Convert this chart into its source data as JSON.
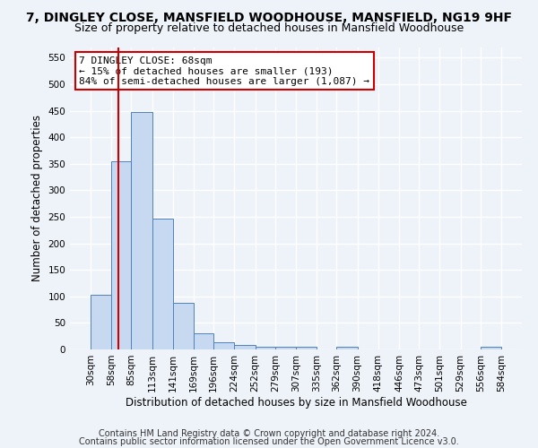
{
  "title": "7, DINGLEY CLOSE, MANSFIELD WOODHOUSE, MANSFIELD, NG19 9HF",
  "subtitle": "Size of property relative to detached houses in Mansfield Woodhouse",
  "xlabel": "Distribution of detached houses by size in Mansfield Woodhouse",
  "ylabel": "Number of detached properties",
  "footer_line1": "Contains HM Land Registry data © Crown copyright and database right 2024.",
  "footer_line2": "Contains public sector information licensed under the Open Government Licence v3.0.",
  "annotation_title": "7 DINGLEY CLOSE: 68sqm",
  "annotation_line1": "← 15% of detached houses are smaller (193)",
  "annotation_line2": "84% of semi-detached houses are larger (1,087) →",
  "bar_color": "#c6d9f0",
  "bar_edge_color": "#4f81bd",
  "vline_color": "#cc0000",
  "vline_x": 68,
  "bins": [
    30,
    58,
    85,
    113,
    141,
    169,
    196,
    224,
    252,
    279,
    307,
    335,
    362,
    390,
    418,
    446,
    473,
    501,
    529,
    556,
    584
  ],
  "values": [
    103,
    354,
    448,
    246,
    88,
    30,
    13,
    9,
    5,
    5,
    5,
    0,
    5,
    0,
    0,
    0,
    0,
    0,
    0,
    5
  ],
  "ylim": [
    0,
    570
  ],
  "yticks": [
    0,
    50,
    100,
    150,
    200,
    250,
    300,
    350,
    400,
    450,
    500,
    550
  ],
  "background_color": "#eef2f9",
  "grid_color": "#ffffff",
  "title_fontsize": 10,
  "subtitle_fontsize": 9,
  "axis_label_fontsize": 8.5,
  "tick_fontsize": 7.5,
  "footer_fontsize": 7,
  "annotation_box_color": "#ffffff",
  "annotation_box_edgecolor": "#cc0000",
  "annotation_fontsize": 8
}
